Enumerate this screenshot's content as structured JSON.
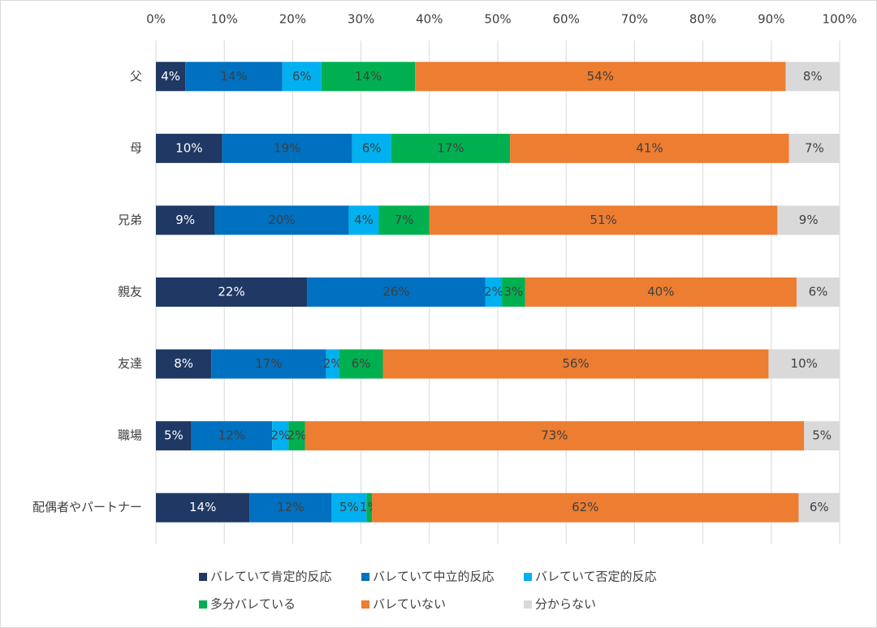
{
  "chart_data": {
    "type": "bar",
    "orientation": "horizontal",
    "stacked": true,
    "categories": [
      "父",
      "母",
      "兄弟",
      "親友",
      "友達",
      "職場",
      "配偶者やパートナー"
    ],
    "series": [
      {
        "name": "バレていて肯定的反応",
        "color": "#1f3864",
        "values": [
          4.3,
          9.7,
          8.6,
          22.1,
          8.1,
          5.2,
          13.7
        ],
        "value_labels": [
          "4%",
          "10%",
          "9%",
          "22%",
          "8%",
          "5%",
          "14%"
        ]
      },
      {
        "name": "バレていて中立的反応",
        "color": "#0070c0",
        "values": [
          14.2,
          19.0,
          19.6,
          26.1,
          16.8,
          11.8,
          12.0
        ],
        "value_labels": [
          "14%",
          "19%",
          "20%",
          "26%",
          "17%",
          "12%",
          "12%"
        ]
      },
      {
        "name": "バレていて否定的反応",
        "color": "#00b0f0",
        "values": [
          5.7,
          5.7,
          4.4,
          2.4,
          1.9,
          2.4,
          5.1
        ],
        "value_labels": [
          "6%",
          "6%",
          "4%",
          "2%",
          "2%",
          "2%",
          "5%"
        ]
      },
      {
        "name": "多分バレている",
        "color": "#00b050",
        "values": [
          13.7,
          17.4,
          7.4,
          3.4,
          6.4,
          2.4,
          0.8
        ],
        "value_labels": [
          "14%",
          "17%",
          "7%",
          "3%",
          "6%",
          "2%",
          "1%"
        ]
      },
      {
        "name": "バレていない",
        "color": "#ed7d31",
        "values": [
          54.2,
          40.8,
          50.9,
          39.7,
          56.4,
          73.0,
          62.4
        ],
        "value_labels": [
          "54%",
          "41%",
          "51%",
          "40%",
          "56%",
          "73%",
          "62%"
        ]
      },
      {
        "name": "分からない",
        "color": "#d9d9d9",
        "values": [
          7.9,
          7.4,
          9.1,
          6.3,
          10.4,
          5.2,
          6.0
        ],
        "value_labels": [
          "8%",
          "7%",
          "9%",
          "6%",
          "10%",
          "5%",
          "6%"
        ]
      }
    ],
    "xlim": [
      0,
      100
    ],
    "xticks": [
      {
        "value": 0,
        "label": "0%"
      },
      {
        "value": 10,
        "label": "10%"
      },
      {
        "value": 20,
        "label": "20%"
      },
      {
        "value": 30,
        "label": "30%"
      },
      {
        "value": 40,
        "label": "40%"
      },
      {
        "value": 50,
        "label": "50%"
      },
      {
        "value": 60,
        "label": "60%"
      },
      {
        "value": 70,
        "label": "70%"
      },
      {
        "value": 80,
        "label": "80%"
      },
      {
        "value": 90,
        "label": "90%"
      },
      {
        "value": 100,
        "label": "100%"
      }
    ],
    "grid": true,
    "legend": "bottom"
  }
}
